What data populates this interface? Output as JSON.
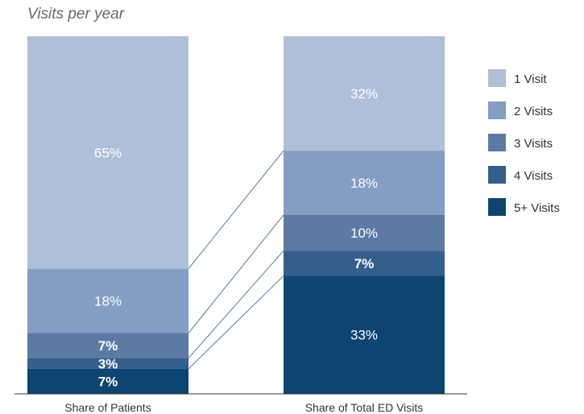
{
  "chart_data": {
    "type": "bar",
    "stacked": true,
    "title": "",
    "subtitle": "Visits per year",
    "categories": [
      "Share of Patients",
      "Share of Total ED Visits"
    ],
    "series": [
      {
        "name": "1 Visit",
        "values": [
          65,
          32
        ],
        "labels": [
          "65%",
          "32%"
        ],
        "color": "#aebfd8"
      },
      {
        "name": "2 Visits",
        "values": [
          18,
          18
        ],
        "labels": [
          "18%",
          "18%"
        ],
        "color": "#839dc3"
      },
      {
        "name": "3 Visits",
        "values": [
          7,
          10
        ],
        "labels": [
          "7%",
          "10%"
        ],
        "color": "#5c7ba4"
      },
      {
        "name": "4 Visits",
        "values": [
          3,
          7
        ],
        "labels": [
          "3%",
          "7%"
        ],
        "color": "#345f8c"
      },
      {
        "name": "5+ Visits",
        "values": [
          7,
          33
        ],
        "labels": [
          "7%",
          "33%"
        ],
        "color": "#0d4570"
      }
    ],
    "ylim": [
      0,
      100
    ],
    "legend_position": "right",
    "connector_lines": true
  }
}
